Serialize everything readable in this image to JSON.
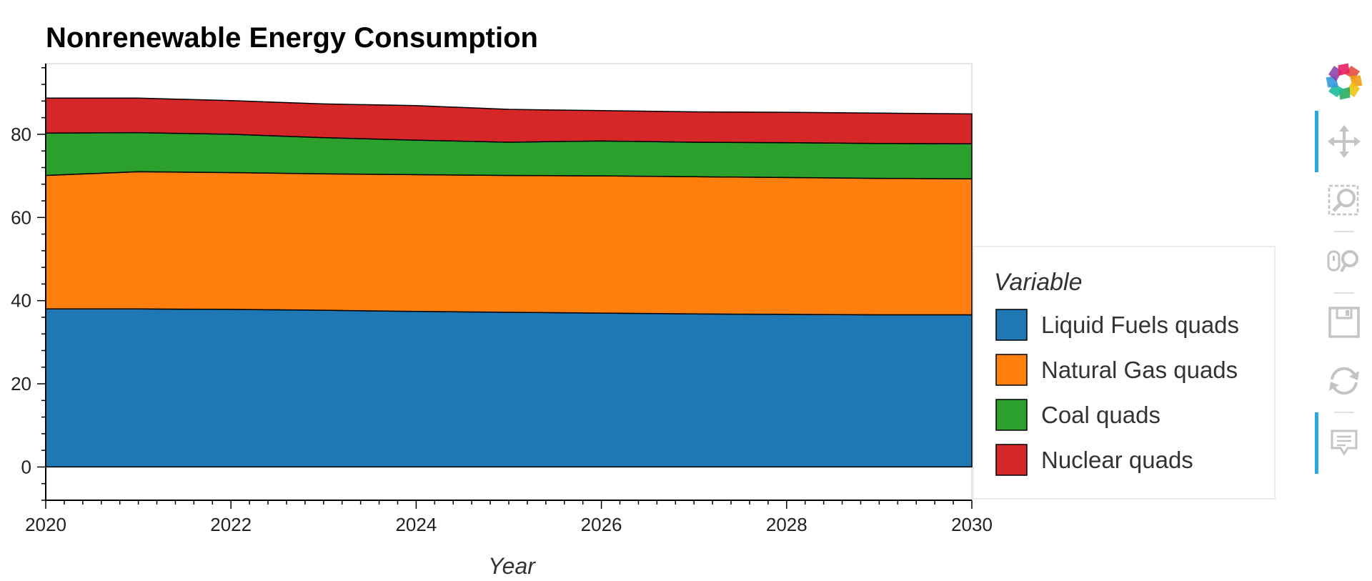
{
  "chart_data": {
    "type": "area",
    "stacked": true,
    "title": "Nonrenewable Energy Consumption",
    "xlabel": "Year",
    "ylabel": "",
    "xlim": [
      2020,
      2030
    ],
    "ylim": [
      -8,
      97
    ],
    "x_ticks": [
      2020,
      2022,
      2024,
      2026,
      2028,
      2030
    ],
    "y_ticks": [
      0,
      20,
      40,
      60,
      80
    ],
    "x": [
      2020,
      2021,
      2022,
      2023,
      2024,
      2025,
      2026,
      2027,
      2028,
      2029,
      2030
    ],
    "legend": {
      "title": "Variable",
      "position": "right"
    },
    "grid": false,
    "series": [
      {
        "name": "Liquid Fuels quads",
        "color": "#1f77b4",
        "values": [
          38.0,
          38.0,
          37.9,
          37.7,
          37.4,
          37.2,
          37.0,
          36.8,
          36.7,
          36.6,
          36.6
        ]
      },
      {
        "name": "Natural Gas quads",
        "color": "#ff7f0e",
        "values": [
          32.1,
          33.0,
          32.9,
          32.8,
          32.9,
          32.9,
          33.0,
          33.0,
          32.9,
          32.8,
          32.7
        ]
      },
      {
        "name": "Coal quads",
        "color": "#2ca02c",
        "values": [
          10.2,
          9.4,
          9.2,
          8.7,
          8.3,
          8.0,
          8.4,
          8.3,
          8.4,
          8.4,
          8.4
        ]
      },
      {
        "name": "Nuclear quads",
        "color": "#d62728",
        "values": [
          8.4,
          8.3,
          8.1,
          8.1,
          8.3,
          7.9,
          7.3,
          7.3,
          7.3,
          7.3,
          7.2
        ]
      }
    ]
  },
  "toolbar": {
    "tools": [
      {
        "name": "logo",
        "icon": "bokeh-logo-icon",
        "active": false
      },
      {
        "name": "pan",
        "icon": "pan-icon",
        "active": true
      },
      {
        "name": "box-zoom",
        "icon": "box-zoom-icon",
        "active": false
      },
      {
        "name": "wheel-zoom",
        "icon": "wheel-zoom-icon",
        "active": false
      },
      {
        "name": "save",
        "icon": "save-icon",
        "active": false
      },
      {
        "name": "reset",
        "icon": "reset-icon",
        "active": false
      },
      {
        "name": "hover",
        "icon": "hover-icon",
        "active": true
      }
    ],
    "active_color": "#26aae1",
    "icon_color": "#c4c4c4"
  }
}
